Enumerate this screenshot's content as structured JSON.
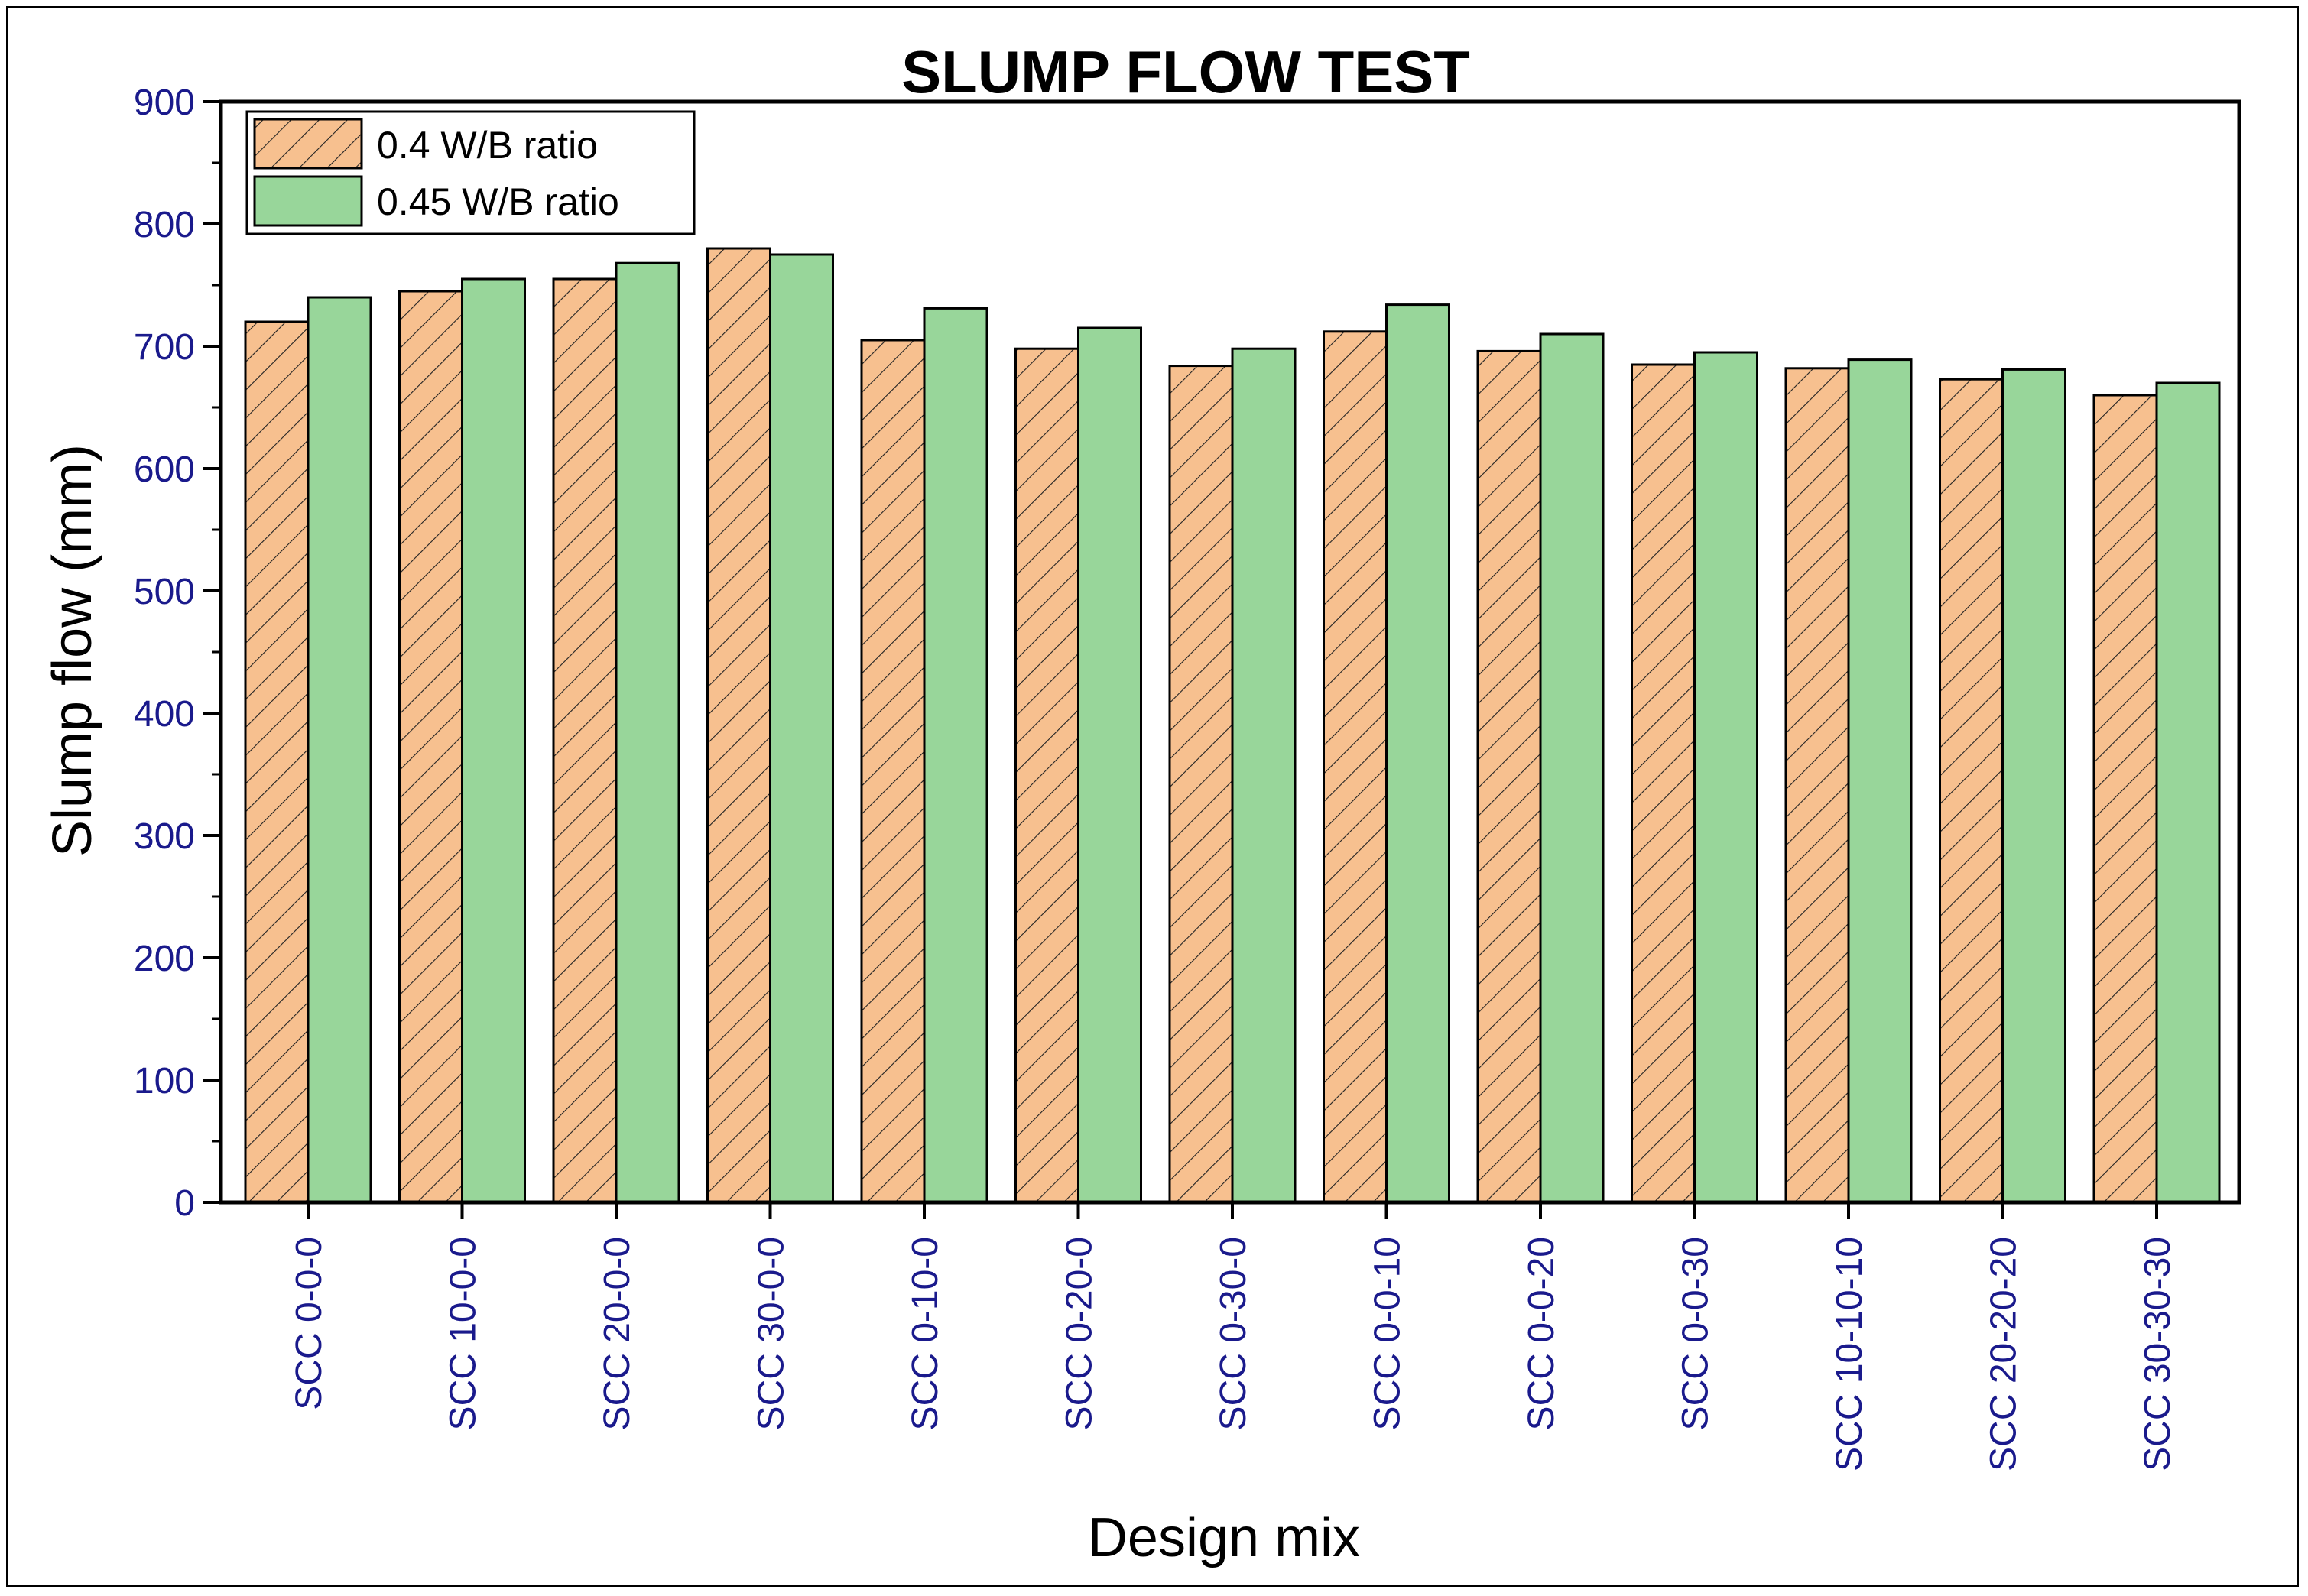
{
  "chart_data": {
    "type": "bar",
    "title": "SLUMP FLOW TEST",
    "xlabel": "Design mix",
    "ylabel": "Slump flow (mm)",
    "ylim": [
      0,
      900
    ],
    "yticks": [
      "0",
      "100",
      "200",
      "300",
      "400",
      "500",
      "600",
      "700",
      "800",
      "900"
    ],
    "categories": [
      "SCC 0-0-0",
      "SCC 10-0-0",
      "SCC 20-0-0",
      "SCC 30-0-0",
      "SCC 0-10-0",
      "SCC 0-20-0",
      "SCC 0-30-0",
      "SCC 0-0-10",
      "SCC 0-0-20",
      "SCC 0-0-30",
      "SCC 10-10-10",
      "SCC 20-20-20",
      "SCC 30-30-30"
    ],
    "series": [
      {
        "name": "0.4 W/B ratio",
        "values": [
          720,
          745,
          755,
          780,
          705,
          698,
          684,
          712,
          696,
          685,
          682,
          673,
          660
        ],
        "color": "#f7c08f",
        "pattern": "hatch"
      },
      {
        "name": "0.45 W/B ratio",
        "values": [
          740,
          755,
          768,
          775,
          731,
          715,
          698,
          734,
          710,
          695,
          689,
          681,
          670
        ],
        "color": "#98d69a",
        "pattern": "solid"
      }
    ],
    "legend_position": "top-left",
    "tick_label_color": "#1a1a8c",
    "grid": false
  }
}
